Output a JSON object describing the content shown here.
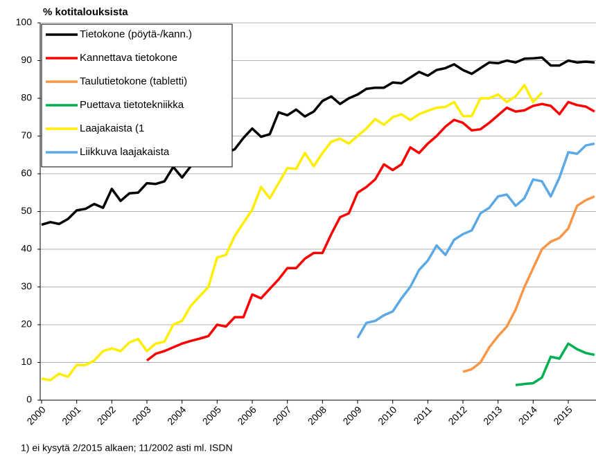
{
  "chart_data": {
    "type": "line",
    "y_label": "% kotitalouksista",
    "footnote": "1) ei kysytä 2/2015 alkaen; 11/2002 asti ml. ISDN",
    "x": [
      2000,
      2000.25,
      2000.5,
      2000.75,
      2001,
      2001.25,
      2001.5,
      2001.75,
      2002,
      2002.25,
      2002.5,
      2002.75,
      2003,
      2003.25,
      2003.5,
      2003.75,
      2004,
      2004.25,
      2004.5,
      2004.75,
      2005,
      2005.25,
      2005.5,
      2005.75,
      2006,
      2006.25,
      2006.5,
      2006.75,
      2007,
      2007.25,
      2007.5,
      2007.75,
      2008,
      2008.25,
      2008.5,
      2008.75,
      2009,
      2009.25,
      2009.5,
      2009.75,
      2010,
      2010.25,
      2010.5,
      2010.75,
      2011,
      2011.25,
      2011.5,
      2011.75,
      2012,
      2012.25,
      2012.5,
      2012.75,
      2013,
      2013.25,
      2013.5,
      2013.75,
      2014,
      2014.25,
      2014.5,
      2014.75,
      2015,
      2015.25,
      2015.5,
      2015.75
    ],
    "series": [
      {
        "name": "Tietokone (pöytä-/kann.)",
        "color": "#000000",
        "values": [
          46.5,
          47.2,
          46.7,
          48.0,
          50.3,
          50.7,
          52.0,
          51.0,
          56.0,
          52.8,
          54.8,
          55.0,
          57.5,
          57.3,
          58.0,
          61.8,
          59.0,
          62.0,
          63.0,
          64.0,
          64.5,
          65.5,
          66.5,
          69.5,
          72.0,
          69.8,
          70.5,
          76.3,
          75.5,
          77.0,
          75.2,
          76.5,
          79.3,
          80.5,
          78.5,
          80.0,
          81.0,
          82.5,
          82.8,
          82.8,
          84.2,
          84.0,
          85.5,
          87.0,
          86.0,
          87.5,
          88.0,
          89.0,
          87.5,
          86.5,
          88.0,
          89.5,
          89.3,
          90.0,
          89.5,
          90.5,
          90.6,
          90.8,
          88.7,
          88.7,
          90.0,
          89.5,
          89.7,
          89.5
        ]
      },
      {
        "name": "Kannettava tietokone",
        "color": "#ff0000",
        "values": [
          null,
          null,
          null,
          null,
          null,
          null,
          null,
          null,
          null,
          null,
          null,
          null,
          10.5,
          12.3,
          13.0,
          14.0,
          15.0,
          15.7,
          16.3,
          17.0,
          20.0,
          19.5,
          22.0,
          22.0,
          28.0,
          27.0,
          29.5,
          32.0,
          35.0,
          35.0,
          37.5,
          39.0,
          39.0,
          44.0,
          48.5,
          49.5,
          55.0,
          56.5,
          58.5,
          62.5,
          61.0,
          62.5,
          67.0,
          65.5,
          68.0,
          70.0,
          72.5,
          74.3,
          73.5,
          71.5,
          71.8,
          73.5,
          75.5,
          77.5,
          76.5,
          76.8,
          78.0,
          78.5,
          78.0,
          75.8,
          79.0,
          78.2,
          77.8,
          76.5
        ]
      },
      {
        "name": "Taulutietokone (tabletti)",
        "color": "#f79646",
        "values": [
          null,
          null,
          null,
          null,
          null,
          null,
          null,
          null,
          null,
          null,
          null,
          null,
          null,
          null,
          null,
          null,
          null,
          null,
          null,
          null,
          null,
          null,
          null,
          null,
          null,
          null,
          null,
          null,
          null,
          null,
          null,
          null,
          null,
          null,
          null,
          null,
          null,
          null,
          null,
          null,
          null,
          null,
          null,
          null,
          null,
          null,
          null,
          null,
          7.5,
          8.2,
          10.0,
          14.0,
          17.0,
          19.5,
          24.0,
          30.0,
          35.0,
          40.0,
          42.0,
          43.0,
          45.5,
          51.5,
          53.0,
          54.0
        ]
      },
      {
        "name": "Puettava tietotekniikka",
        "color": "#00b050",
        "values": [
          null,
          null,
          null,
          null,
          null,
          null,
          null,
          null,
          null,
          null,
          null,
          null,
          null,
          null,
          null,
          null,
          null,
          null,
          null,
          null,
          null,
          null,
          null,
          null,
          null,
          null,
          null,
          null,
          null,
          null,
          null,
          null,
          null,
          null,
          null,
          null,
          null,
          null,
          null,
          null,
          null,
          null,
          null,
          null,
          null,
          null,
          null,
          null,
          null,
          null,
          null,
          null,
          null,
          null,
          4.0,
          4.3,
          4.5,
          6.0,
          11.5,
          11.0,
          15.0,
          13.5,
          12.5,
          12.0
        ]
      },
      {
        "name": "Laajakaista (1",
        "color": "#ffee00",
        "values": [
          5.7,
          5.3,
          7.0,
          6.2,
          9.3,
          9.3,
          10.5,
          13.0,
          13.7,
          13.0,
          15.3,
          16.2,
          13.0,
          15.0,
          15.5,
          20.0,
          21.0,
          25.0,
          27.5,
          30.0,
          37.8,
          38.5,
          43.5,
          47.0,
          50.5,
          56.5,
          53.5,
          57.5,
          61.5,
          61.3,
          65.5,
          62.0,
          65.5,
          68.5,
          69.3,
          68.0,
          70.0,
          72.0,
          74.5,
          73.0,
          75.0,
          75.8,
          74.2,
          75.8,
          76.7,
          77.5,
          77.7,
          79.0,
          75.3,
          75.3,
          80.0,
          80.0,
          81.0,
          79.0,
          80.5,
          83.5,
          79.0,
          81.5,
          null,
          null,
          null,
          null,
          null,
          null
        ]
      },
      {
        "name": "Liikkuva laajakaista",
        "color": "#5aa9e6",
        "values": [
          null,
          null,
          null,
          null,
          null,
          null,
          null,
          null,
          null,
          null,
          null,
          null,
          null,
          null,
          null,
          null,
          null,
          null,
          null,
          null,
          null,
          null,
          null,
          null,
          null,
          null,
          null,
          null,
          null,
          null,
          null,
          null,
          null,
          null,
          null,
          null,
          16.5,
          20.5,
          21.0,
          22.5,
          23.5,
          27.0,
          30.0,
          34.5,
          37.0,
          41.0,
          38.5,
          42.5,
          44.0,
          45.0,
          49.5,
          51.0,
          54.0,
          54.5,
          51.5,
          53.5,
          58.5,
          58.0,
          54.0,
          59.0,
          65.7,
          65.3,
          67.5,
          68.0
        ]
      }
    ],
    "xlim": [
      2000,
      2015.75
    ],
    "xticks": [
      2000,
      2001,
      2002,
      2003,
      2004,
      2005,
      2006,
      2007,
      2008,
      2009,
      2010,
      2011,
      2012,
      2013,
      2014,
      2015
    ],
    "ylim": [
      0,
      100
    ],
    "yticks": [
      0,
      10,
      20,
      30,
      40,
      50,
      60,
      70,
      80,
      90,
      100
    ],
    "grid": true,
    "legend": "upper left"
  }
}
